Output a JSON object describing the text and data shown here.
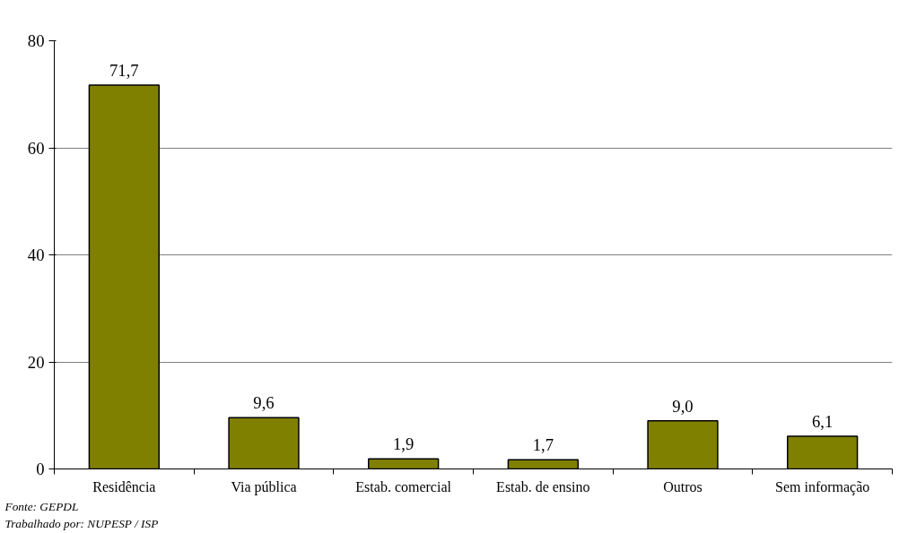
{
  "chart_data": {
    "type": "bar",
    "categories": [
      "Residência",
      "Via pública",
      "Estab. comercial",
      "Estab. de ensino",
      "Outros",
      "Sem informação"
    ],
    "values": [
      71.7,
      9.6,
      1.9,
      1.7,
      9.0,
      6.1
    ],
    "value_labels": [
      "71,7",
      "9,6",
      "1,9",
      "1,7",
      "9,0",
      "6,1"
    ],
    "color": "#808000",
    "ylim": [
      0,
      80
    ],
    "yticks": [
      0,
      20,
      40,
      60,
      80
    ],
    "grid": "y",
    "annotations": [
      "Fonte: GEPDL",
      "Trabalhado por: NUPESP / ISP"
    ]
  }
}
